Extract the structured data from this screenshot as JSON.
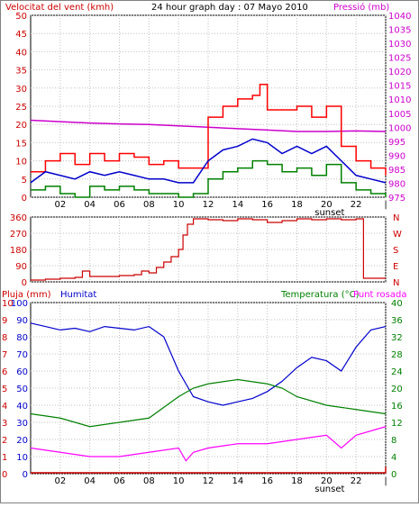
{
  "header": {
    "wind_label": "Velocitat del vent (kmh)",
    "title": "24 hour graph day : 07 Mayo 2010",
    "pressure_label": "Pressió (mb)"
  },
  "middle_header": {
    "rain_label": "Pluja (mm)",
    "humidity_label": "Humitat",
    "temp_label": "Temperatura (°C)",
    "dew_label": "Punt rosada"
  },
  "colors": {
    "wind_gust": "#ff0000",
    "wind_avg": "#0000cc",
    "wind_min": "#008000",
    "pressure": "#cc00cc",
    "direction": "#cc0000",
    "humidity": "#0000cc",
    "temperature": "#008000",
    "dewpoint": "#ff00ff",
    "rain": "#cc0000",
    "axis_left": "#cc0000",
    "axis_right_top": "#cc00cc",
    "axis_right_bottom": "#008000",
    "grid": "#c0c0c0"
  },
  "chart_data": [
    {
      "type": "line",
      "title": "24 hour graph day : 07 Mayo 2010",
      "ylabel": "Velocitat del vent (kmh)",
      "y2label": "Pressió (mb)",
      "x_ticks": [
        "02",
        "04",
        "06",
        "08",
        "10",
        "12",
        "14",
        "16",
        "18",
        "20",
        "22",
        "|"
      ],
      "x_annotation": "sunset",
      "ylim": [
        0,
        50
      ],
      "yticks": [
        0,
        5,
        10,
        15,
        20,
        25,
        30,
        35,
        40,
        45,
        50
      ],
      "y2lim": [
        975,
        1040
      ],
      "y2ticks": [
        975,
        980,
        985,
        990,
        995,
        1000,
        1005,
        1010,
        1015,
        1020,
        1025,
        1030,
        1035,
        1040
      ],
      "grid": true,
      "series": [
        {
          "name": "",
          "axis": "left",
          "x": [
            0,
            1,
            2,
            3,
            4,
            5,
            6,
            7,
            8,
            9,
            10,
            11,
            12,
            13,
            14,
            15,
            15.5,
            16,
            17,
            18,
            19,
            20,
            21,
            22,
            23,
            24
          ],
          "values": [
            7,
            10,
            12,
            9,
            12,
            10,
            12,
            11,
            9,
            10,
            8,
            8,
            22,
            25,
            27,
            28,
            31,
            24,
            24,
            25,
            22,
            25,
            14,
            10,
            8,
            6
          ]
        },
        {
          "name": "",
          "axis": "left",
          "x": [
            0,
            1,
            2,
            3,
            4,
            5,
            6,
            7,
            8,
            9,
            10,
            11,
            12,
            13,
            14,
            15,
            16,
            17,
            18,
            19,
            20,
            21,
            22,
            23,
            24
          ],
          "values": [
            4,
            7,
            6,
            5,
            7,
            6,
            7,
            6,
            5,
            5,
            4,
            4,
            10,
            13,
            14,
            16,
            15,
            12,
            14,
            12,
            14,
            10,
            6,
            5,
            4
          ]
        },
        {
          "name": "",
          "axis": "left",
          "x": [
            0,
            1,
            2,
            3,
            4,
            5,
            6,
            7,
            8,
            9,
            10,
            11,
            12,
            13,
            14,
            15,
            16,
            17,
            18,
            19,
            20,
            21,
            22,
            23,
            24
          ],
          "values": [
            2,
            3,
            1,
            0,
            3,
            2,
            3,
            2,
            1,
            1,
            0,
            1,
            5,
            7,
            8,
            10,
            9,
            7,
            8,
            6,
            9,
            4,
            2,
            1,
            0
          ]
        },
        {
          "name": "",
          "axis": "right",
          "x": [
            0,
            2,
            4,
            6,
            8,
            10,
            12,
            14,
            16,
            18,
            20,
            22,
            24
          ],
          "values": [
            1002.5,
            1002.0,
            1001.5,
            1001.2,
            1001.0,
            1000.5,
            1000.0,
            999.5,
            999.0,
            998.5,
            998.5,
            998.7,
            998.5
          ]
        }
      ]
    },
    {
      "type": "line",
      "ylim": [
        0,
        360
      ],
      "yticks": [
        0,
        90,
        180,
        270,
        360
      ],
      "y2ticks": [
        "N",
        "W",
        "S",
        "E",
        "N"
      ],
      "grid": true,
      "series": [
        {
          "name": "",
          "x": [
            0,
            1,
            2,
            3,
            3.5,
            4,
            5,
            6,
            7,
            7.5,
            8,
            8.5,
            9,
            9.5,
            10,
            10.3,
            10.6,
            11,
            12,
            13,
            14,
            15,
            16,
            17,
            18,
            19,
            20,
            21,
            22,
            22.5,
            24
          ],
          "values": [
            10,
            15,
            20,
            25,
            60,
            30,
            30,
            35,
            40,
            60,
            50,
            80,
            110,
            140,
            180,
            260,
            320,
            350,
            345,
            340,
            350,
            345,
            330,
            340,
            350,
            345,
            350,
            345,
            350,
            20,
            20
          ]
        }
      ]
    },
    {
      "type": "line",
      "ylabel": "Pluja (mm)",
      "ylim": [
        0,
        10
      ],
      "yticks": [
        0,
        1,
        2,
        3,
        4,
        5,
        6,
        7,
        8,
        9,
        10
      ],
      "y1b_ticks": [
        0,
        10,
        20,
        30,
        40,
        50,
        60,
        70,
        80,
        90,
        100
      ],
      "y2label": "Temperatura (°C)",
      "y2lim": [
        0,
        40
      ],
      "y2ticks": [
        0,
        4,
        8,
        12,
        16,
        20,
        24,
        28,
        32,
        36,
        40
      ],
      "x_ticks": [
        "02",
        "04",
        "06",
        "08",
        "10",
        "12",
        "14",
        "16",
        "18",
        "20",
        "22",
        "|"
      ],
      "x_annotation": "sunset",
      "grid": true,
      "series": [
        {
          "name": "Humitat",
          "axis": "left",
          "x": [
            0,
            1,
            2,
            3,
            4,
            5,
            6,
            7,
            8,
            9,
            10,
            11,
            12,
            13,
            14,
            15,
            16,
            17,
            18,
            19,
            20,
            21,
            22,
            23,
            24
          ],
          "values": [
            88,
            86,
            84,
            85,
            83,
            86,
            85,
            84,
            86,
            80,
            60,
            45,
            42,
            40,
            42,
            44,
            48,
            54,
            62,
            68,
            66,
            60,
            74,
            84,
            86
          ]
        },
        {
          "name": "",
          "axis": "right",
          "x": [
            0,
            2,
            4,
            6,
            8,
            10,
            11,
            12,
            14,
            16,
            17,
            18,
            20,
            22,
            24
          ],
          "values": [
            14,
            13,
            11,
            12,
            13,
            18,
            20,
            21,
            22,
            21,
            20,
            18,
            16,
            15,
            14
          ]
        },
        {
          "name": "Punt rosada",
          "axis": "right",
          "x": [
            0,
            2,
            4,
            6,
            8,
            10,
            10.5,
            11,
            12,
            14,
            16,
            18,
            20,
            21,
            22,
            24
          ],
          "values": [
            6,
            5,
            4,
            4,
            5,
            6,
            3,
            5,
            6,
            7,
            7,
            8,
            9,
            6,
            9,
            11
          ]
        },
        {
          "name": "",
          "axis": "left",
          "x": [
            0,
            23.5,
            24
          ],
          "values": [
            0.05,
            0.05,
            0.4
          ]
        }
      ]
    }
  ]
}
